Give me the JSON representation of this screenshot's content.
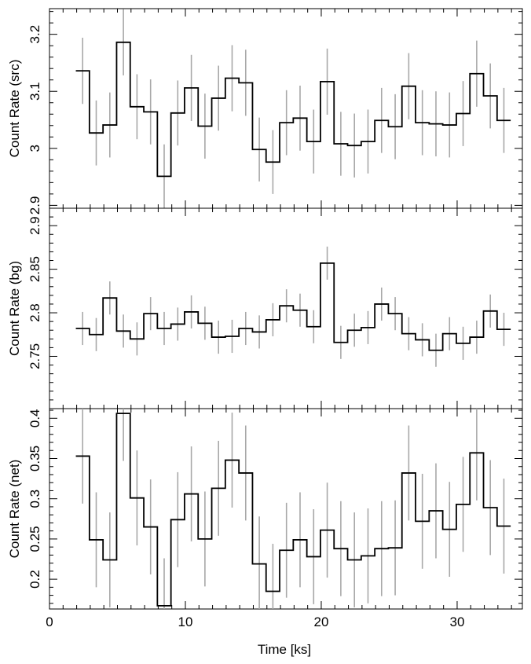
{
  "chart_data": {
    "type": "line",
    "subtype": "step-histogram-with-errorbars",
    "xlabel": "Time [ks]",
    "xlim": [
      0,
      34.8
    ],
    "xticks": [
      0,
      10,
      20,
      30
    ],
    "panels": [
      {
        "ylabel": "Count Rate (src)",
        "ylim": [
          2.895,
          3.245
        ],
        "yticks": [
          2.9,
          3,
          3.1,
          3.2
        ],
        "yticklabels": [
          "2.9",
          "3",
          "3.1",
          "3.2"
        ],
        "bins": [
          {
            "x0": 1.94,
            "x1": 2.94,
            "y": 3.136,
            "err": 0.058
          },
          {
            "x0": 2.94,
            "x1": 3.94,
            "y": 3.027,
            "err": 0.057
          },
          {
            "x0": 3.94,
            "x1": 4.94,
            "y": 3.041,
            "err": 0.057
          },
          {
            "x0": 4.94,
            "x1": 5.94,
            "y": 3.186,
            "err": 0.058
          },
          {
            "x0": 5.94,
            "x1": 6.94,
            "y": 3.073,
            "err": 0.057
          },
          {
            "x0": 6.94,
            "x1": 7.94,
            "y": 3.064,
            "err": 0.057
          },
          {
            "x0": 7.94,
            "x1": 8.94,
            "y": 2.951,
            "err": 0.056
          },
          {
            "x0": 8.94,
            "x1": 9.94,
            "y": 3.062,
            "err": 0.057
          },
          {
            "x0": 9.94,
            "x1": 10.94,
            "y": 3.106,
            "err": 0.058
          },
          {
            "x0": 10.94,
            "x1": 11.94,
            "y": 3.039,
            "err": 0.057
          },
          {
            "x0": 11.94,
            "x1": 12.94,
            "y": 3.088,
            "err": 0.057
          },
          {
            "x0": 12.94,
            "x1": 13.94,
            "y": 3.123,
            "err": 0.058
          },
          {
            "x0": 13.94,
            "x1": 14.94,
            "y": 3.115,
            "err": 0.058
          },
          {
            "x0": 14.94,
            "x1": 15.94,
            "y": 2.998,
            "err": 0.056
          },
          {
            "x0": 15.94,
            "x1": 16.94,
            "y": 2.976,
            "err": 0.056
          },
          {
            "x0": 16.94,
            "x1": 17.94,
            "y": 3.045,
            "err": 0.057
          },
          {
            "x0": 17.94,
            "x1": 18.94,
            "y": 3.053,
            "err": 0.057
          },
          {
            "x0": 18.94,
            "x1": 19.94,
            "y": 3.012,
            "err": 0.056
          },
          {
            "x0": 19.94,
            "x1": 20.94,
            "y": 3.117,
            "err": 0.058
          },
          {
            "x0": 20.94,
            "x1": 21.94,
            "y": 3.008,
            "err": 0.056
          },
          {
            "x0": 21.94,
            "x1": 22.94,
            "y": 3.005,
            "err": 0.056
          },
          {
            "x0": 22.94,
            "x1": 23.94,
            "y": 3.012,
            "err": 0.056
          },
          {
            "x0": 23.94,
            "x1": 24.94,
            "y": 3.049,
            "err": 0.057
          },
          {
            "x0": 24.94,
            "x1": 25.94,
            "y": 3.038,
            "err": 0.057
          },
          {
            "x0": 25.94,
            "x1": 26.94,
            "y": 3.109,
            "err": 0.058
          },
          {
            "x0": 26.94,
            "x1": 27.94,
            "y": 3.045,
            "err": 0.057
          },
          {
            "x0": 27.94,
            "x1": 28.94,
            "y": 3.043,
            "err": 0.057
          },
          {
            "x0": 28.94,
            "x1": 29.94,
            "y": 3.041,
            "err": 0.057
          },
          {
            "x0": 29.94,
            "x1": 30.94,
            "y": 3.061,
            "err": 0.057
          },
          {
            "x0": 30.94,
            "x1": 31.94,
            "y": 3.131,
            "err": 0.058
          },
          {
            "x0": 31.94,
            "x1": 32.94,
            "y": 3.092,
            "err": 0.057
          },
          {
            "x0": 32.94,
            "x1": 33.94,
            "y": 3.049,
            "err": 0.057
          }
        ]
      },
      {
        "ylabel": "Count Rate (bg)",
        "ylim": [
          2.69,
          2.92
        ],
        "yticks": [
          2.75,
          2.8,
          2.85,
          2.9
        ],
        "yticklabels": [
          "2.75",
          "2.8",
          "2.85",
          "2.9"
        ],
        "bins": [
          {
            "x0": 1.94,
            "x1": 2.94,
            "y": 2.782,
            "err": 0.019
          },
          {
            "x0": 2.94,
            "x1": 3.94,
            "y": 2.775,
            "err": 0.019
          },
          {
            "x0": 3.94,
            "x1": 4.94,
            "y": 2.817,
            "err": 0.019
          },
          {
            "x0": 4.94,
            "x1": 5.94,
            "y": 2.779,
            "err": 0.019
          },
          {
            "x0": 5.94,
            "x1": 6.94,
            "y": 2.77,
            "err": 0.019
          },
          {
            "x0": 6.94,
            "x1": 7.94,
            "y": 2.799,
            "err": 0.019
          },
          {
            "x0": 7.94,
            "x1": 8.94,
            "y": 2.782,
            "err": 0.019
          },
          {
            "x0": 8.94,
            "x1": 9.94,
            "y": 2.787,
            "err": 0.019
          },
          {
            "x0": 9.94,
            "x1": 10.94,
            "y": 2.801,
            "err": 0.019
          },
          {
            "x0": 10.94,
            "x1": 11.94,
            "y": 2.788,
            "err": 0.019
          },
          {
            "x0": 11.94,
            "x1": 12.94,
            "y": 2.772,
            "err": 0.019
          },
          {
            "x0": 12.94,
            "x1": 13.94,
            "y": 2.773,
            "err": 0.019
          },
          {
            "x0": 13.94,
            "x1": 14.94,
            "y": 2.782,
            "err": 0.019
          },
          {
            "x0": 14.94,
            "x1": 15.94,
            "y": 2.778,
            "err": 0.019
          },
          {
            "x0": 15.94,
            "x1": 16.94,
            "y": 2.792,
            "err": 0.019
          },
          {
            "x0": 16.94,
            "x1": 17.94,
            "y": 2.808,
            "err": 0.019
          },
          {
            "x0": 17.94,
            "x1": 18.94,
            "y": 2.803,
            "err": 0.019
          },
          {
            "x0": 18.94,
            "x1": 19.94,
            "y": 2.784,
            "err": 0.019
          },
          {
            "x0": 19.94,
            "x1": 20.94,
            "y": 2.857,
            "err": 0.019
          },
          {
            "x0": 20.94,
            "x1": 21.94,
            "y": 2.766,
            "err": 0.019
          },
          {
            "x0": 21.94,
            "x1": 22.94,
            "y": 2.78,
            "err": 0.019
          },
          {
            "x0": 22.94,
            "x1": 23.94,
            "y": 2.783,
            "err": 0.019
          },
          {
            "x0": 23.94,
            "x1": 24.94,
            "y": 2.81,
            "err": 0.019
          },
          {
            "x0": 24.94,
            "x1": 25.94,
            "y": 2.799,
            "err": 0.019
          },
          {
            "x0": 25.94,
            "x1": 26.94,
            "y": 2.776,
            "err": 0.019
          },
          {
            "x0": 26.94,
            "x1": 27.94,
            "y": 2.769,
            "err": 0.019
          },
          {
            "x0": 27.94,
            "x1": 28.94,
            "y": 2.757,
            "err": 0.019
          },
          {
            "x0": 28.94,
            "x1": 29.94,
            "y": 2.776,
            "err": 0.019
          },
          {
            "x0": 29.94,
            "x1": 30.94,
            "y": 2.765,
            "err": 0.019
          },
          {
            "x0": 30.94,
            "x1": 31.94,
            "y": 2.772,
            "err": 0.019
          },
          {
            "x0": 31.94,
            "x1": 32.94,
            "y": 2.802,
            "err": 0.019
          },
          {
            "x0": 32.94,
            "x1": 33.94,
            "y": 2.781,
            "err": 0.019
          }
        ]
      },
      {
        "ylabel": "Count Rate (net)",
        "ylim": [
          0.163,
          0.412
        ],
        "yticks": [
          0.2,
          0.25,
          0.3,
          0.35,
          0.4
        ],
        "yticklabels": [
          "0.2",
          "0.25",
          "0.3",
          "0.35",
          "0.4"
        ],
        "bins": [
          {
            "x0": 1.94,
            "x1": 2.94,
            "y": 0.353,
            "err": 0.059
          },
          {
            "x0": 2.94,
            "x1": 3.94,
            "y": 0.249,
            "err": 0.059
          },
          {
            "x0": 3.94,
            "x1": 4.94,
            "y": 0.224,
            "err": 0.059
          },
          {
            "x0": 4.94,
            "x1": 5.94,
            "y": 0.406,
            "err": 0.059
          },
          {
            "x0": 5.94,
            "x1": 6.94,
            "y": 0.301,
            "err": 0.059
          },
          {
            "x0": 6.94,
            "x1": 7.94,
            "y": 0.265,
            "err": 0.059
          },
          {
            "x0": 7.94,
            "x1": 8.94,
            "y": 0.167,
            "err": 0.059
          },
          {
            "x0": 8.94,
            "x1": 9.94,
            "y": 0.274,
            "err": 0.059
          },
          {
            "x0": 9.94,
            "x1": 10.94,
            "y": 0.306,
            "err": 0.059
          },
          {
            "x0": 10.94,
            "x1": 11.94,
            "y": 0.25,
            "err": 0.059
          },
          {
            "x0": 11.94,
            "x1": 12.94,
            "y": 0.313,
            "err": 0.059
          },
          {
            "x0": 12.94,
            "x1": 13.94,
            "y": 0.348,
            "err": 0.059
          },
          {
            "x0": 13.94,
            "x1": 14.94,
            "y": 0.332,
            "err": 0.059
          },
          {
            "x0": 14.94,
            "x1": 15.94,
            "y": 0.219,
            "err": 0.059
          },
          {
            "x0": 15.94,
            "x1": 16.94,
            "y": 0.185,
            "err": 0.059
          },
          {
            "x0": 16.94,
            "x1": 17.94,
            "y": 0.236,
            "err": 0.059
          },
          {
            "x0": 17.94,
            "x1": 18.94,
            "y": 0.249,
            "err": 0.059
          },
          {
            "x0": 18.94,
            "x1": 19.94,
            "y": 0.228,
            "err": 0.059
          },
          {
            "x0": 19.94,
            "x1": 20.94,
            "y": 0.261,
            "err": 0.059
          },
          {
            "x0": 20.94,
            "x1": 21.94,
            "y": 0.238,
            "err": 0.059
          },
          {
            "x0": 21.94,
            "x1": 22.94,
            "y": 0.224,
            "err": 0.059
          },
          {
            "x0": 22.94,
            "x1": 23.94,
            "y": 0.229,
            "err": 0.059
          },
          {
            "x0": 23.94,
            "x1": 24.94,
            "y": 0.238,
            "err": 0.059
          },
          {
            "x0": 24.94,
            "x1": 25.94,
            "y": 0.239,
            "err": 0.059
          },
          {
            "x0": 25.94,
            "x1": 26.94,
            "y": 0.332,
            "err": 0.059
          },
          {
            "x0": 26.94,
            "x1": 27.94,
            "y": 0.272,
            "err": 0.059
          },
          {
            "x0": 27.94,
            "x1": 28.94,
            "y": 0.285,
            "err": 0.059
          },
          {
            "x0": 28.94,
            "x1": 29.94,
            "y": 0.262,
            "err": 0.059
          },
          {
            "x0": 29.94,
            "x1": 30.94,
            "y": 0.293,
            "err": 0.059
          },
          {
            "x0": 30.94,
            "x1": 31.94,
            "y": 0.357,
            "err": 0.059
          },
          {
            "x0": 31.94,
            "x1": 32.94,
            "y": 0.289,
            "err": 0.059
          },
          {
            "x0": 32.94,
            "x1": 33.94,
            "y": 0.266,
            "err": 0.059
          }
        ]
      }
    ]
  }
}
